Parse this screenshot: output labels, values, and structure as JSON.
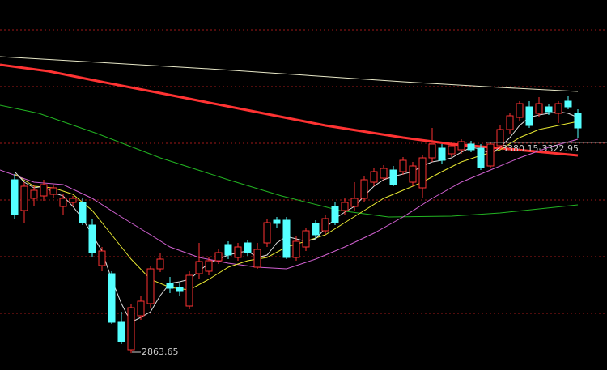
{
  "chart_data": {
    "type": "candlestick",
    "background": "#000000",
    "up_color": "#ff3232",
    "down_color": "#54ffff",
    "grid_color": "#a01818",
    "ylim": [
      2822,
      3736
    ],
    "grid_lines": [
      3662,
      3522,
      3382,
      3242,
      3102,
      2962
    ],
    "categories": [
      null,
      null,
      null,
      null,
      null,
      null,
      null,
      null,
      null,
      null,
      null,
      null,
      null,
      null,
      null,
      null,
      null,
      null,
      null,
      null,
      null,
      null,
      null,
      null,
      null,
      null,
      null,
      null,
      null,
      null,
      null,
      null,
      null,
      null,
      null,
      null,
      null,
      null,
      null,
      null,
      null,
      null,
      null,
      null,
      null,
      null,
      null,
      null,
      null,
      null,
      null,
      null,
      null,
      null,
      null,
      null,
      null,
      null,
      null
    ],
    "open": [
      3292,
      3216,
      3246,
      3252,
      3256,
      3226,
      3236,
      3236,
      3180,
      3080,
      3060,
      2940,
      2872,
      2956,
      2986,
      3072,
      3036,
      3026,
      2980,
      3060,
      3066,
      3092,
      3132,
      3100,
      3136,
      3076,
      3136,
      3192,
      3192,
      3100,
      3126,
      3184,
      3166,
      3226,
      3216,
      3226,
      3246,
      3286,
      3296,
      3316,
      3312,
      3286,
      3272,
      3346,
      3370,
      3356,
      3366,
      3380,
      3370,
      3326,
      3376,
      3416,
      3446,
      3472,
      3456,
      3472,
      3456,
      3486,
      3456
    ],
    "high": [
      3306,
      3286,
      3280,
      3292,
      3280,
      3256,
      3252,
      3246,
      3196,
      3126,
      3066,
      2966,
      2986,
      3006,
      3080,
      3112,
      3052,
      3036,
      3066,
      3136,
      3100,
      3120,
      3140,
      3136,
      3144,
      3136,
      3196,
      3200,
      3200,
      3152,
      3172,
      3192,
      3206,
      3236,
      3246,
      3286,
      3300,
      3320,
      3328,
      3326,
      3348,
      3336,
      3352,
      3420,
      3380,
      3384,
      3392,
      3388,
      3380,
      3386,
      3426,
      3456,
      3486,
      3486,
      3496,
      3480,
      3486,
      3500,
      3466
    ],
    "low": [
      3196,
      3186,
      3226,
      3240,
      3248,
      3206,
      3226,
      3180,
      3100,
      3066,
      2936,
      2886,
      2863.65,
      2946,
      2976,
      3064,
      3012,
      3006,
      2972,
      3046,
      3056,
      3084,
      3096,
      3092,
      3104,
      3072,
      3126,
      3172,
      3096,
      3092,
      3116,
      3146,
      3156,
      3180,
      3206,
      3216,
      3236,
      3276,
      3288,
      3276,
      3304,
      3276,
      3246,
      3336,
      3332,
      3348,
      3356,
      3360,
      3316,
      3320,
      3366,
      3406,
      3436,
      3420,
      3446,
      3452,
      3432,
      3466,
      3396
    ],
    "close": [
      3206,
      3276,
      3266,
      3280,
      3272,
      3246,
      3246,
      3186,
      3112,
      3116,
      2940,
      2892,
      2976,
      2992,
      3072,
      3096,
      3024,
      3016,
      3056,
      3090,
      3092,
      3112,
      3106,
      3126,
      3112,
      3120,
      3186,
      3184,
      3100,
      3140,
      3166,
      3156,
      3196,
      3186,
      3236,
      3246,
      3292,
      3312,
      3320,
      3280,
      3340,
      3326,
      3346,
      3380,
      3340,
      3376,
      3386,
      3366,
      3322,
      3380,
      3416,
      3450,
      3480,
      3426,
      3480,
      3460,
      3480,
      3472,
      3420
    ],
    "series": [
      {
        "color": "#e8e8c8",
        "width": 1,
        "x": [
          -1.5,
          10,
          20,
          30,
          40,
          50,
          58
        ],
        "values": [
          3596,
          3580,
          3566,
          3550,
          3534,
          3520,
          3510
        ]
      },
      {
        "color": "#ff3333",
        "width": 3,
        "x": [
          -1.5,
          3.5,
          8.5,
          15,
          23.5,
          32,
          40,
          45,
          50,
          58
        ],
        "values": [
          3576,
          3560,
          3536,
          3506,
          3466,
          3426,
          3396,
          3380,
          3370,
          3352
        ]
      },
      {
        "color": "#22b422",
        "width": 1,
        "x": [
          -1.5,
          2.5,
          8.5,
          15,
          22,
          27.5,
          33.5,
          38.5,
          45,
          50,
          58
        ],
        "values": [
          3476,
          3456,
          3406,
          3346,
          3292,
          3252,
          3216,
          3200,
          3202,
          3210,
          3230
        ]
      },
      {
        "color": "#d060d0",
        "width": 1,
        "x": [
          -1.5,
          2,
          5,
          8,
          11,
          14,
          16,
          19,
          22,
          25,
          28,
          31,
          34,
          37,
          40,
          43,
          46,
          49,
          52,
          55,
          58
        ],
        "values": [
          3316,
          3286,
          3280,
          3246,
          3200,
          3156,
          3126,
          3100,
          3086,
          3076,
          3072,
          3096,
          3126,
          3160,
          3200,
          3246,
          3286,
          3316,
          3346,
          3372,
          3392
        ]
      },
      {
        "color": "#e6e632",
        "width": 1,
        "x": [
          0,
          2,
          4,
          6,
          8,
          10,
          12,
          14,
          16,
          18,
          20,
          22,
          24,
          26,
          28,
          30,
          32,
          34,
          36,
          38,
          40,
          42,
          44,
          46,
          48,
          50,
          52,
          54,
          56,
          58
        ],
        "values": [
          3306,
          3276,
          3272,
          3256,
          3216,
          3156,
          3096,
          3046,
          3026,
          3020,
          3046,
          3076,
          3092,
          3100,
          3126,
          3140,
          3156,
          3186,
          3216,
          3246,
          3266,
          3286,
          3312,
          3336,
          3352,
          3366,
          3396,
          3416,
          3426,
          3436
        ]
      },
      {
        "color": "#e0e0e0",
        "width": 1,
        "values": [
          3312,
          3286,
          3272,
          3276,
          3260,
          3252,
          3226,
          3196,
          3156,
          3116,
          3046,
          2986,
          2940,
          2952,
          2966,
          3006,
          3036,
          3040,
          3046,
          3066,
          3086,
          3096,
          3106,
          3112,
          3116,
          3100,
          3106,
          3136,
          3152,
          3146,
          3140,
          3146,
          3172,
          3196,
          3212,
          3226,
          3252,
          3276,
          3292,
          3300,
          3306,
          3312,
          3326,
          3336,
          3340,
          3346,
          3360,
          3372,
          3368,
          3356,
          3372,
          3396,
          3426,
          3446,
          3452,
          3456,
          3460,
          3456,
          3446
        ]
      }
    ],
    "annotations": [
      {
        "text": "2863.65"
      },
      {
        "text": "3380.15-3322.95"
      }
    ]
  }
}
